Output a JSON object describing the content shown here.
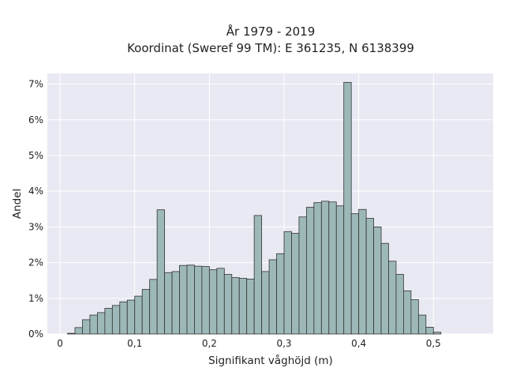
{
  "chart_data": {
    "type": "bar",
    "title_line1": "År 1979 - 2019",
    "title_line2": "Koordinat (Sweref 99 TM): E 361235, N 6138399",
    "xlabel": "Signifikant våghöjd (m)",
    "ylabel": "Andel",
    "xlim": [
      -0.017,
      0.58
    ],
    "ylim": [
      0,
      7.3
    ],
    "x_ticks": [
      0,
      0.1,
      0.2,
      0.3,
      0.4,
      0.5
    ],
    "x_tick_labels": [
      "0",
      "0,1",
      "0,2",
      "0,3",
      "0,4",
      "0,5"
    ],
    "y_ticks": [
      0,
      1,
      2,
      3,
      4,
      5,
      6,
      7
    ],
    "y_tick_labels": [
      "0%",
      "1%",
      "2%",
      "3%",
      "4%",
      "5%",
      "6%",
      "7%"
    ],
    "grid": true,
    "bar_color": "#9db8b8",
    "bar_edge_color": "#333333",
    "bin_width": 0.01,
    "bin_starts": [
      0.01,
      0.02,
      0.03,
      0.04,
      0.05,
      0.06,
      0.07,
      0.08,
      0.09,
      0.1,
      0.11,
      0.12,
      0.13,
      0.14,
      0.15,
      0.16,
      0.17,
      0.18,
      0.19,
      0.2,
      0.21,
      0.22,
      0.23,
      0.24,
      0.25,
      0.26,
      0.27,
      0.28,
      0.29,
      0.3,
      0.31,
      0.32,
      0.33,
      0.34,
      0.35,
      0.36,
      0.37,
      0.38,
      0.39,
      0.4,
      0.41,
      0.42,
      0.43,
      0.44,
      0.45,
      0.46,
      0.47,
      0.48,
      0.49,
      0.5,
      0.51,
      0.52,
      0.53,
      0.54
    ],
    "values": [
      0.02,
      0.18,
      0.4,
      0.53,
      0.6,
      0.72,
      0.8,
      0.9,
      0.95,
      1.06,
      1.25,
      1.53,
      3.48,
      1.72,
      1.75,
      1.92,
      1.93,
      1.9,
      1.89,
      1.8,
      1.84,
      1.67,
      1.58,
      1.56,
      1.54,
      3.32,
      1.75,
      2.08,
      2.25,
      2.87,
      2.82,
      3.28,
      3.55,
      3.68,
      3.72,
      3.7,
      3.59,
      7.05,
      3.37,
      3.49,
      3.24,
      3.0,
      2.54,
      2.04,
      1.67,
      1.21,
      0.96,
      0.53,
      0.19,
      0.05,
      0,
      0,
      0,
      0
    ]
  }
}
